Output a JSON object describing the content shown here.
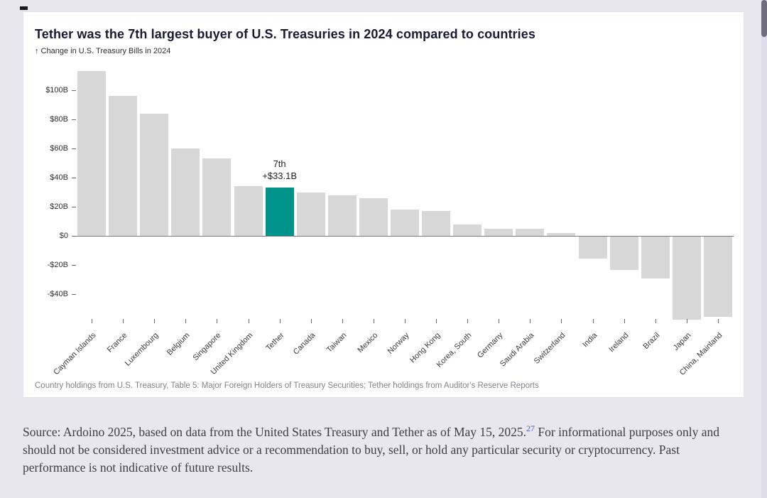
{
  "page": {
    "source_prefix": "Source: Ardoino 2025, based on data from the United States Treasury and Tether as of May 15, 2025.",
    "source_ref": "27",
    "source_suffix": " For informational purposes only and should not be considered investment advice or a recommendation to buy, sell, or hold any particular security or cryptocurrency. Past performance is not indicative of future results."
  },
  "colors": {
    "background": "#e8e7ee",
    "card": "#ffffff",
    "bar": "#d7d7d7",
    "highlight": "#00938b",
    "link": "#4a5bd4"
  },
  "chart_data": {
    "type": "bar",
    "title": "Tether was the 7th largest buyer of U.S. Treasuries in 2024 compared to countries",
    "subtitle": "↑ Change in U.S. Treasury Bills in 2024",
    "xlabel": "",
    "ylabel": "Change in U.S. Treasury Bills in 2024",
    "unit": "billions USD",
    "categories": [
      "Cayman Islands",
      "France",
      "Luxembourg",
      "Belgium",
      "Singapore",
      "United Kingdom",
      "Tether",
      "Canada",
      "Taiwan",
      "Mexico",
      "Norway",
      "Hong Kong",
      "Korea, South",
      "Germany",
      "Saudi Arabia",
      "Switzerland",
      "India",
      "Ireland",
      "Brazil",
      "Japan",
      "China, Mainland"
    ],
    "values": [
      113,
      96,
      84,
      60,
      53,
      34,
      33.1,
      30,
      28,
      26,
      18,
      17,
      8,
      5,
      5,
      2,
      -15,
      -23,
      -29,
      -57,
      -55
    ],
    "bar_color": "#d7d7d7",
    "highlight": {
      "category": "Tether",
      "index": 6,
      "color": "#00938b",
      "annotation_line1": "7th",
      "annotation_line2": "+$33.1B"
    },
    "y_ticks": [
      {
        "label": "$100B",
        "value": 100
      },
      {
        "label": "$80B",
        "value": 80
      },
      {
        "label": "$60B",
        "value": 60
      },
      {
        "label": "$40B",
        "value": 40
      },
      {
        "label": "$20B",
        "value": 20
      },
      {
        "label": "$0",
        "value": 0
      },
      {
        "label": "-$20B",
        "value": -20
      },
      {
        "label": "-$40B",
        "value": -40
      }
    ],
    "ylim": [
      -60,
      118
    ],
    "grid": false,
    "legend": false,
    "footnote": "Country holdings from U.S. Treasury, Table 5: Major Foreign Holders of Treasury Securities; Tether holdings from Auditor's Reserve Reports"
  }
}
